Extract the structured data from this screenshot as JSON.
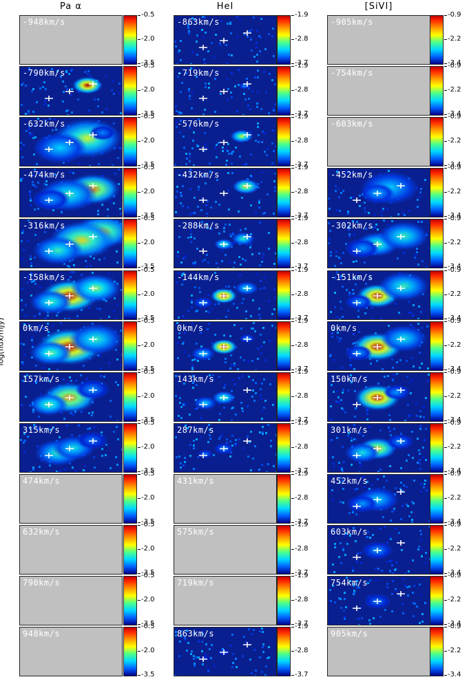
{
  "y_axis_label": "log(flux/mJy)",
  "columns": [
    {
      "title": "Pa α",
      "colorbar_ticks": [
        "-0.5",
        "-2.0",
        "-3.5"
      ],
      "panels": [
        {
          "velocity": "-948km/s",
          "data": false
        },
        {
          "velocity": "-790km/s",
          "data": true
        },
        {
          "velocity": "-632km/s",
          "data": true
        },
        {
          "velocity": "-474km/s",
          "data": true
        },
        {
          "velocity": "-316km/s",
          "data": true
        },
        {
          "velocity": "-158km/s",
          "data": true
        },
        {
          "velocity": "0km/s",
          "data": true
        },
        {
          "velocity": "157km/s",
          "data": true
        },
        {
          "velocity": "315km/s",
          "data": true
        },
        {
          "velocity": "474km/s",
          "data": false
        },
        {
          "velocity": "632km/s",
          "data": false
        },
        {
          "velocity": "790km/s",
          "data": false
        },
        {
          "velocity": "948km/s",
          "data": false
        }
      ]
    },
    {
      "title": "HeI",
      "colorbar_ticks": [
        "-1.9",
        "-2.8",
        "-3.7"
      ],
      "panels": [
        {
          "velocity": "-863km/s",
          "data": true
        },
        {
          "velocity": "-719km/s",
          "data": true
        },
        {
          "velocity": "-576km/s",
          "data": true
        },
        {
          "velocity": "-432km/s",
          "data": true
        },
        {
          "velocity": "-288km/s",
          "data": true
        },
        {
          "velocity": "-144km/s",
          "data": true
        },
        {
          "velocity": "0km/s",
          "data": true
        },
        {
          "velocity": "143km/s",
          "data": true
        },
        {
          "velocity": "287km/s",
          "data": true
        },
        {
          "velocity": "431km/s",
          "data": false
        },
        {
          "velocity": "575km/s",
          "data": false
        },
        {
          "velocity": "719km/s",
          "data": false
        },
        {
          "velocity": "863km/s",
          "data": true
        }
      ]
    },
    {
      "title": "[SiVI]",
      "colorbar_ticks": [
        "-0.9",
        "-2.2",
        "-3.4"
      ],
      "panels": [
        {
          "velocity": "-905km/s",
          "data": false
        },
        {
          "velocity": "-754km/s",
          "data": false
        },
        {
          "velocity": "-603km/s",
          "data": false
        },
        {
          "velocity": "-452km/s",
          "data": true
        },
        {
          "velocity": "-302km/s",
          "data": true
        },
        {
          "velocity": "-151km/s",
          "data": true
        },
        {
          "velocity": "0km/s",
          "data": true
        },
        {
          "velocity": "150km/s",
          "data": true
        },
        {
          "velocity": "301km/s",
          "data": true
        },
        {
          "velocity": "452km/s",
          "data": true
        },
        {
          "velocity": "603km/s",
          "data": true
        },
        {
          "velocity": "754km/s",
          "data": true
        },
        {
          "velocity": "905km/s",
          "data": false
        }
      ]
    }
  ],
  "colors": {
    "empty_panel": "#c0c0c0",
    "background_dark": "#0a1f8f",
    "marker": "#ffffff"
  }
}
